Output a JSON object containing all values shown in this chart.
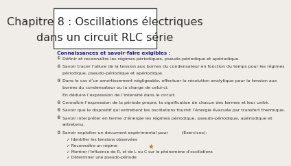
{
  "title_line1": "Chapitre 8 : Oscillations électriques",
  "title_line2": "dans un circuit RLC série",
  "bg_color": "#f0ede8",
  "title_box_color": "#ffffff",
  "title_box_edge": "#555555",
  "title_font_size": 11.5,
  "section_header": "Connaissances et savoir-faire exigibles :",
  "items": [
    {
      "num": "①",
      "text": "Définir et reconnaître les régimes périodiques, pseudo-périodique et apériodique."
    },
    {
      "num": "②",
      "text": "Savoir tracer l’allure de la tension aux bornes du condensateur en fonction du temps pour les régimes\npériodique, pseudo-périodique et apériodique."
    },
    {
      "num": "③",
      "text": "Dans le cas d’un amortissement négligeable, effectuer la résolution analytique pour la tension aux\nbornes du condensateur ou la charge de celui-ci.\nEn déduire l’expression de l’intensité dans le circuit."
    },
    {
      "num": "④",
      "text": "Connaître l’expression de la période propre, la signification de chacun des termes et leur unité."
    },
    {
      "num": "⑤",
      "text": "Savoir que le dispositif qui entretient les oscillations fournit l’énergie évacuée par transfert thermique."
    },
    {
      "num": "⑥",
      "text": "Savoir interpréter en terme d’énergie les régimes périodique, pseudo-périodique, apériodique et\nentretenu."
    },
    {
      "num": "⑦",
      "text": "Savoir exploiter un document expérimental pour          (Exercices):",
      "subitems": [
        "Identifier les tensions observées",
        "Reconnaître un régime",
        "Montrer l’influence de R, et de L ou C sur le phénomène d’oscillations",
        "Déterminer une pseudo-période"
      ]
    }
  ],
  "text_color": "#2a2a2a",
  "header_color": "#1a1a8a",
  "item_font_size": 4.5,
  "header_font_size": 5.2
}
